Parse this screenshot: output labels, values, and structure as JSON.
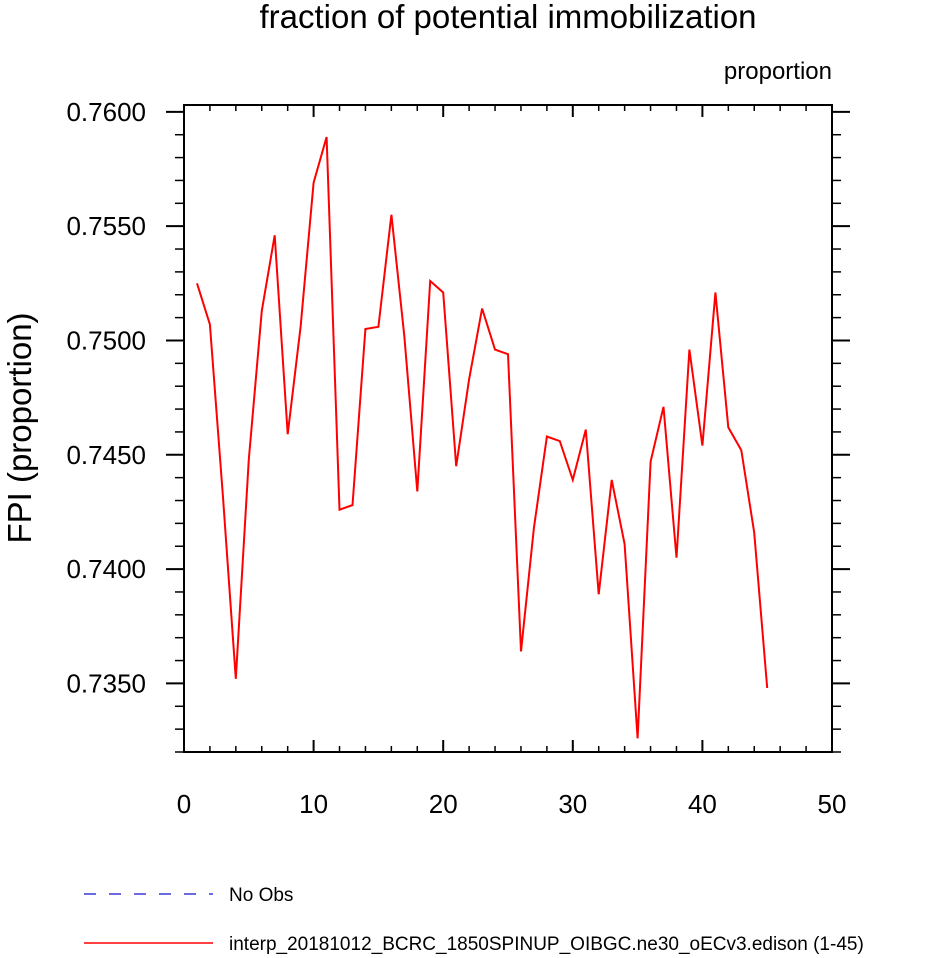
{
  "chart_data": {
    "type": "line",
    "title": "fraction of potential immobilization",
    "units_label": "proportion",
    "ylabel": "FPI  (proportion)",
    "xlabel": "",
    "xlim": [
      0,
      50
    ],
    "ylim": [
      0.732,
      0.7603
    ],
    "x_ticks": [
      0,
      10,
      20,
      30,
      40,
      50
    ],
    "y_ticks": [
      0.735,
      0.74,
      0.745,
      0.75,
      0.755,
      0.76
    ],
    "y_tick_labels": [
      "0.7350",
      "0.7400",
      "0.7450",
      "0.7500",
      "0.7550",
      "0.7600"
    ],
    "x_tick_labels": [
      "0",
      "10",
      "20",
      "30",
      "40",
      "50"
    ],
    "grid": false,
    "legend_position": "bottom",
    "series": [
      {
        "name": "interp_20181012_BCRC_1850SPINUP_OIBGC.ne30_oECv3.edison (1-45)",
        "color": "#ff0000",
        "dash": "solid",
        "x": [
          1,
          2,
          3,
          4,
          5,
          6,
          7,
          8,
          9,
          10,
          11,
          12,
          13,
          14,
          15,
          16,
          17,
          18,
          19,
          20,
          21,
          22,
          23,
          24,
          25,
          26,
          27,
          28,
          29,
          30,
          31,
          32,
          33,
          34,
          35,
          36,
          37,
          38,
          39,
          40,
          41,
          42,
          43,
          44,
          45
        ],
        "y": [
          0.7525,
          0.7507,
          0.7432,
          0.7352,
          0.7448,
          0.7513,
          0.7546,
          0.7459,
          0.7506,
          0.7569,
          0.7589,
          0.7426,
          0.7428,
          0.7505,
          0.7506,
          0.7555,
          0.7502,
          0.7434,
          0.7526,
          0.7521,
          0.7445,
          0.7483,
          0.7514,
          0.7496,
          0.7494,
          0.7364,
          0.7418,
          0.7458,
          0.7456,
          0.7439,
          0.7461,
          0.7389,
          0.7439,
          0.7411,
          0.7326,
          0.7447,
          0.7471,
          0.7405,
          0.7496,
          0.7454,
          0.7521,
          0.7462,
          0.7452,
          0.7416,
          0.7348
        ]
      }
    ],
    "legend": [
      {
        "label": "No Obs",
        "color": "#3b3bd6",
        "dash": "dashed"
      },
      {
        "label": "interp_20181012_BCRC_1850SPINUP_OIBGC.ne30_oECv3.edison (1-45)",
        "color": "#ff0000",
        "dash": "solid"
      }
    ]
  }
}
